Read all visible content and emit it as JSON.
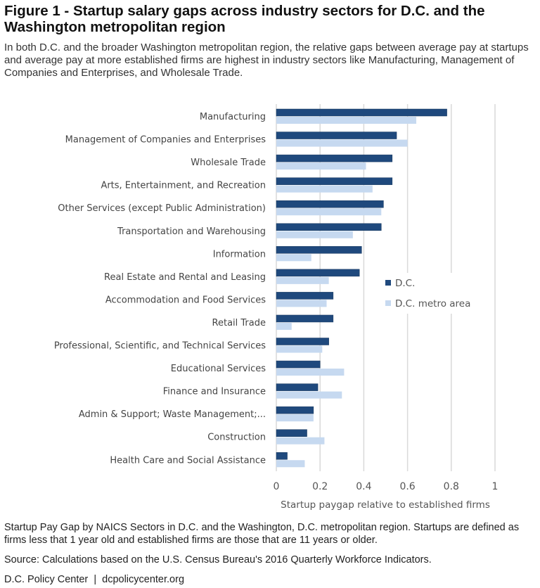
{
  "title": "Figure 1 - Startup salary gaps across industry sectors for D.C. and the Washington metropolitan region",
  "subtitle": "In both D.C. and the broader Washington metropolitan region, the relative gaps between average pay at startups and average pay at more established firms are highest in industry sectors like Manufacturing, Management of Companies and Enterprises, and Wholesale Trade.",
  "footer": {
    "caption": "Startup Pay Gap by NAICS Sectors in D.C. and the Washington, D.C. metropolitan region. Startups are defined as firms less that 1 year old and established firms are those that are 11 years or older.",
    "source": "Source: Calculations based on the U.S. Census Bureau's 2016 Quarterly Workforce Indicators.",
    "credit": "D.C. Policy Center  |  dcpolicycenter.org"
  },
  "chart_data": {
    "type": "bar",
    "orientation": "horizontal",
    "categories": [
      "Manufacturing",
      "Management of Companies and Enterprises",
      "Wholesale Trade",
      "Arts, Entertainment, and Recreation",
      "Other Services (except Public Administration)",
      "Transportation and Warehousing",
      "Information",
      "Real Estate and Rental and Leasing",
      "Accommodation and Food Services",
      "Retail Trade",
      "Professional, Scientific, and Technical Services",
      "Educational Services",
      "Finance and Insurance",
      "Admin & Support; Waste Management;...",
      "Construction",
      "Health Care and Social Assistance"
    ],
    "series": [
      {
        "name": "D.C.",
        "color": "#1f497d",
        "values": [
          0.78,
          0.55,
          0.53,
          0.53,
          0.49,
          0.48,
          0.39,
          0.38,
          0.26,
          0.26,
          0.24,
          0.2,
          0.19,
          0.17,
          0.14,
          0.05
        ]
      },
      {
        "name": "D.C. metro area",
        "color": "#c6d9f0",
        "values": [
          0.64,
          0.6,
          0.41,
          0.44,
          0.48,
          0.35,
          0.16,
          0.24,
          0.23,
          0.07,
          0.21,
          0.31,
          0.3,
          0.17,
          0.22,
          0.13
        ]
      }
    ],
    "xlabel": "Startup paygap relative to established firms",
    "xlim": [
      0,
      1
    ],
    "xticks": [
      "0",
      "0.2",
      "0.4",
      "0.6",
      "0.8",
      "1"
    ],
    "grid": true,
    "legend": "right"
  }
}
